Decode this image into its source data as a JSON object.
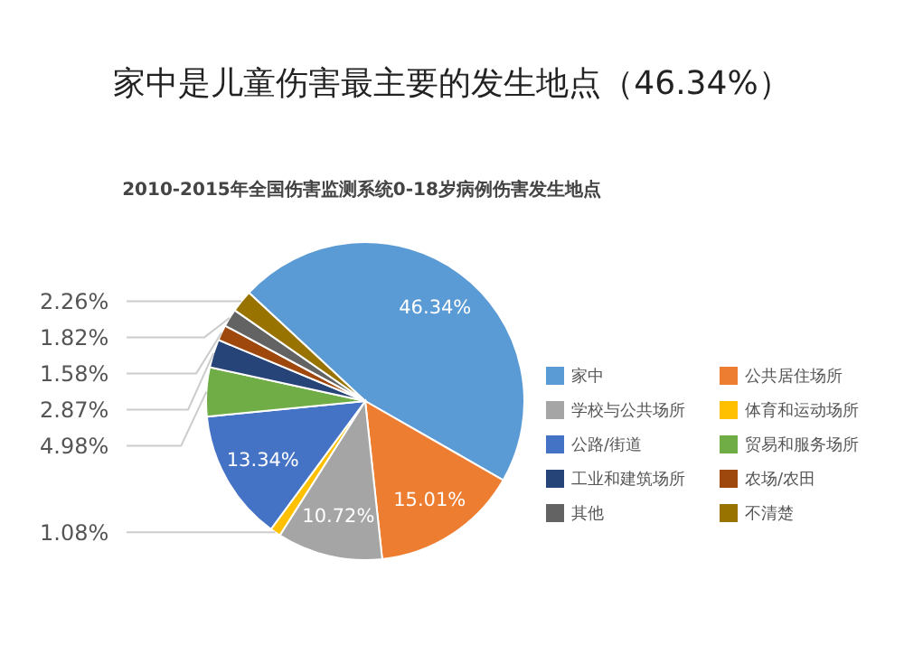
{
  "chart_data": {
    "type": "pie",
    "title": "家中是儿童伤害最主要的发生地点（46.34%）",
    "subtitle": "2010-2015年全国伤害监测系统0-18岁病例伤害发生地点",
    "categories": [
      "家中",
      "公共居住场所",
      "学校与公共场所",
      "体育和运动场所",
      "公路/街道",
      "贸易和服务场所",
      "工业和建筑场所",
      "农场/农田",
      "其他",
      "不清楚"
    ],
    "values": [
      46.34,
      15.01,
      10.72,
      1.08,
      13.34,
      4.98,
      2.87,
      1.58,
      1.82,
      2.26
    ],
    "value_labels": [
      "46.34%",
      "15.01%",
      "10.72%",
      "1.08%",
      "13.34%",
      "4.98%",
      "2.87%",
      "1.58%",
      "1.82%",
      "2.26%"
    ],
    "colors": [
      "#5b9bd5",
      "#ed7d31",
      "#a5a5a5",
      "#ffc000",
      "#4472c4",
      "#70ad47",
      "#264478",
      "#9e480e",
      "#636363",
      "#997300"
    ],
    "legend": "right"
  }
}
